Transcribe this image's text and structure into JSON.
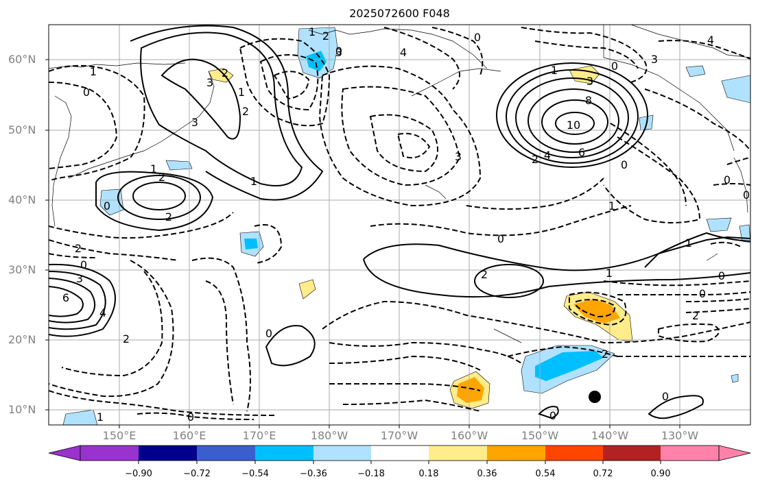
{
  "title": "2025072600 F048",
  "lat_labels": [
    "60°N",
    "50°N",
    "40°N",
    "30°N",
    "20°N",
    "10°N"
  ],
  "lon_labels": [
    "150°E",
    "160°E",
    "170°E",
    "180°W",
    "170°W",
    "160°W",
    "150°W",
    "140°W",
    "130°W"
  ],
  "colorbar": {
    "labels": [
      "−0.90",
      "−0.72",
      "−0.54",
      "−0.36",
      "−0.18",
      "0.18",
      "0.36",
      "0.54",
      "0.72",
      "0.90"
    ],
    "colors": [
      "#9a32cd",
      "#00008b",
      "#3a5fcd",
      "#00bfff",
      "#b0e2ff",
      "#ffffff",
      "#ffec8b",
      "#ffa500",
      "#ff4500",
      "#b22222",
      "#ff82ab"
    ]
  },
  "contour_labels": {
    "nw_top_1": "1",
    "nw_0": "0",
    "nw_3": "3",
    "nw_3b": "3",
    "nw_2": "2",
    "nw_1": "1",
    "kam_1": "1",
    "kam_2": "2",
    "kam_2b": "2",
    "kam_0": "0",
    "mid_1": "1",
    "sw_2": "2",
    "sw_1": "1",
    "sw_0": "0",
    "sw_3": "3",
    "sw_6": "6",
    "sw_4": "4",
    "sw_2b": "2",
    "sw_2c": "2",
    "sw_0b": "0",
    "bot_1": "1",
    "bot_0": "0",
    "c_0": "0",
    "c_3": "3",
    "c_4": "4",
    "c_2": "2",
    "c_3b": "3",
    "c_0b": "0",
    "ne_1": "1",
    "ne_8": "8",
    "ne_10": "10",
    "ne_6": "6",
    "ne_4": "4",
    "ne_2": "2",
    "ne_0": "0",
    "ne_3": "3",
    "ne_0b": "0",
    "ne_4b": "4",
    "ne_3b": "3",
    "e_1": "1",
    "e_0": "0",
    "e_0b": "0",
    "e_1b": "1",
    "e_0c": "0",
    "e_0d": "0",
    "e_2": "2",
    "s_2": "2",
    "s_1": "1",
    "s_2b": "2",
    "s_0": "0",
    "s_0b": "0",
    "s_0c": "0"
  }
}
